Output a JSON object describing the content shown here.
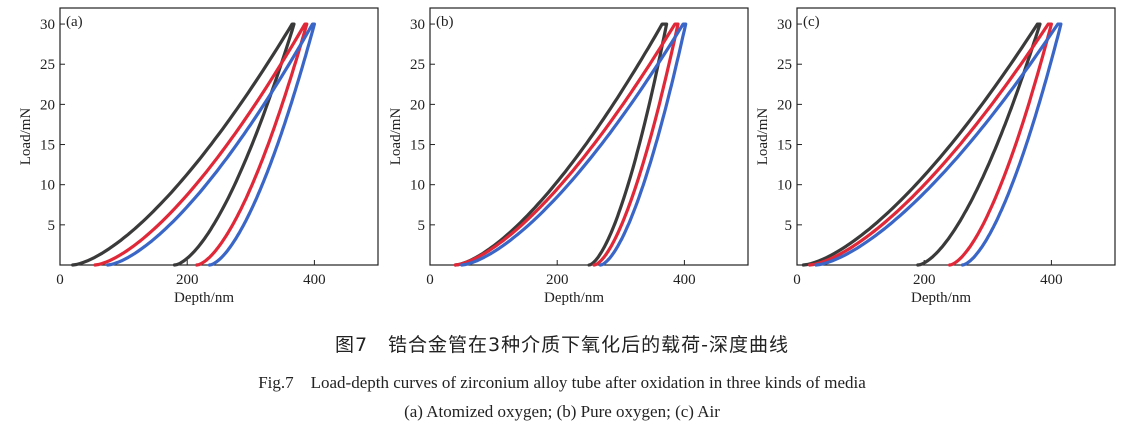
{
  "colors": {
    "series_1": "#3a3a3a",
    "series_2": "#e02838",
    "series_3": "#3a66c8"
  },
  "chart_data": [
    {
      "type": "line",
      "panel_label": "(a)",
      "xlabel": "Depth/nm",
      "ylabel": "Load/mN",
      "xlim": [
        0,
        500
      ],
      "ylim": [
        0,
        32
      ],
      "xticks": [
        0,
        200,
        400
      ],
      "yticks": [
        5,
        10,
        15,
        20,
        25,
        30
      ],
      "grid": false,
      "series": [
        {
          "color": "#3a3a3a",
          "loading": {
            "start": 20,
            "peak": 365
          },
          "unloading": {
            "end": 180,
            "hold_end": 368,
            "max": 30
          }
        },
        {
          "color": "#e02838",
          "loading": {
            "start": 55,
            "peak": 385
          },
          "unloading": {
            "end": 215,
            "hold_end": 388,
            "max": 30
          }
        },
        {
          "color": "#3a66c8",
          "loading": {
            "start": 75,
            "peak": 397
          },
          "unloading": {
            "end": 235,
            "hold_end": 400,
            "max": 30
          }
        }
      ]
    },
    {
      "type": "line",
      "panel_label": "(b)",
      "xlabel": "Depth/nm",
      "ylabel": "Load/mN",
      "xlim": [
        0,
        500
      ],
      "ylim": [
        0,
        32
      ],
      "xticks": [
        0,
        200,
        400
      ],
      "yticks": [
        5,
        10,
        15,
        20,
        25,
        30
      ],
      "grid": false,
      "series": [
        {
          "color": "#3a3a3a",
          "loading": {
            "start": 40,
            "peak": 365
          },
          "unloading": {
            "end": 250,
            "hold_end": 372,
            "max": 30
          }
        },
        {
          "color": "#e02838",
          "loading": {
            "start": 40,
            "peak": 385
          },
          "unloading": {
            "end": 258,
            "hold_end": 390,
            "max": 30
          }
        },
        {
          "color": "#3a66c8",
          "loading": {
            "start": 50,
            "peak": 398
          },
          "unloading": {
            "end": 268,
            "hold_end": 402,
            "max": 30
          }
        }
      ]
    },
    {
      "type": "line",
      "panel_label": "(c)",
      "xlabel": "Depth/nm",
      "ylabel": "Load/mN",
      "xlim": [
        0,
        500
      ],
      "ylim": [
        0,
        32
      ],
      "xticks": [
        0,
        200,
        400
      ],
      "yticks": [
        5,
        10,
        15,
        20,
        25,
        30
      ],
      "grid": false,
      "series": [
        {
          "color": "#3a3a3a",
          "loading": {
            "start": 10,
            "peak": 378
          },
          "unloading": {
            "end": 190,
            "hold_end": 382,
            "max": 30
          }
        },
        {
          "color": "#e02838",
          "loading": {
            "start": 20,
            "peak": 395
          },
          "unloading": {
            "end": 240,
            "hold_end": 400,
            "max": 30
          }
        },
        {
          "color": "#3a66c8",
          "loading": {
            "start": 30,
            "peak": 410
          },
          "unloading": {
            "end": 260,
            "hold_end": 415,
            "max": 30
          }
        }
      ]
    }
  ],
  "caption": {
    "cn": "图7　锆合金管在3种介质下氧化后的载荷-深度曲线",
    "en": "Fig.7　Load-depth curves of zirconium alloy tube after oxidation in three kinds of media",
    "sub": "(a) Atomized oxygen; (b) Pure oxygen; (c) Air"
  }
}
